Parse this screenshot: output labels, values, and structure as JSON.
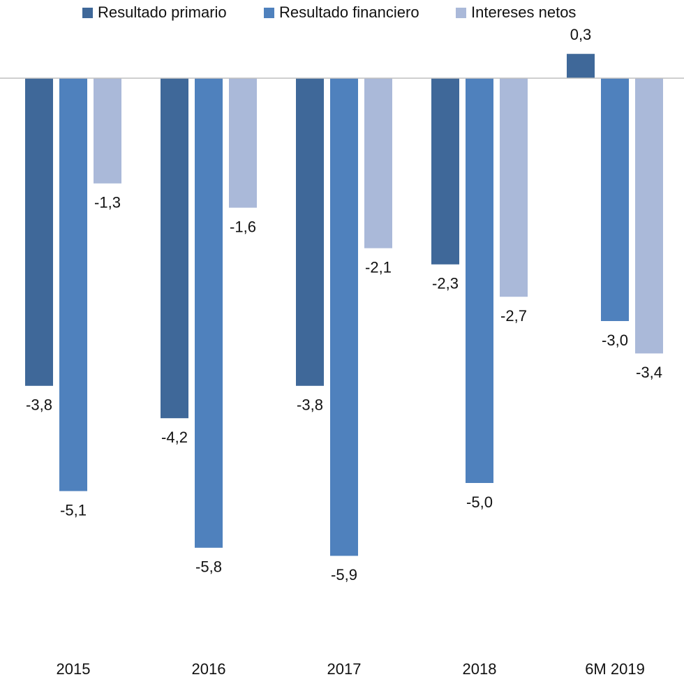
{
  "chart_data": {
    "type": "bar",
    "categories": [
      "2015",
      "2016",
      "2017",
      "2018",
      "6M 2019"
    ],
    "series": [
      {
        "name": "Resultado primario",
        "color": "#3f6899",
        "values": [
          -3.8,
          -4.2,
          -3.8,
          -2.3,
          0.3
        ],
        "value_labels": [
          "-3,8",
          "-4,2",
          "-3,8",
          "-2,3",
          "0,3"
        ]
      },
      {
        "name": "Resultado financiero",
        "color": "#4f81bd",
        "values": [
          -5.1,
          -5.8,
          -5.9,
          -5.0,
          -3.0
        ],
        "value_labels": [
          "-5,1",
          "-5,8",
          "-5,9",
          "-5,0",
          "-3,0"
        ]
      },
      {
        "name": "Intereses netos",
        "color": "#aab9d9",
        "values": [
          -1.3,
          -1.6,
          -2.1,
          -2.7,
          -3.4
        ],
        "value_labels": [
          "-1,3",
          "-1,6",
          "-2,1",
          "-2,7",
          "-3,4"
        ]
      }
    ],
    "ylim": [
      -7,
      0.5
    ],
    "legend": "top"
  }
}
